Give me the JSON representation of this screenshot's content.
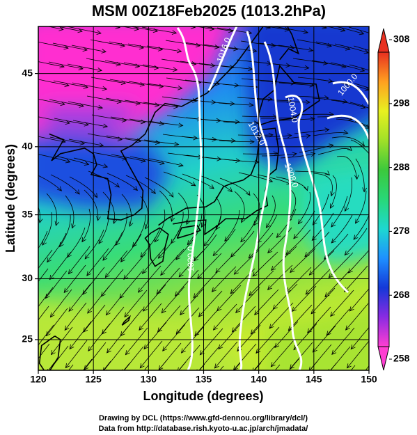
{
  "chart_data": {
    "type": "map",
    "title": "MSM 00Z18Feb2025 (1013.2hPa)",
    "xlabel": "Longitude (degrees)",
    "ylabel": "Latitude  (degrees)",
    "projection": "mercator",
    "xlim": [
      120,
      150
    ],
    "ylim": [
      22.4,
      48
    ],
    "xticks": [
      120,
      125,
      130,
      135,
      140,
      145,
      150
    ],
    "yticks": [
      25,
      30,
      35,
      40,
      45
    ],
    "grid": true,
    "colorbar": {
      "lim": [
        258,
        308
      ],
      "ticks": [
        258,
        268,
        278,
        288,
        298,
        308
      ],
      "colors": [
        "#ff3ed2",
        "#8a2be2",
        "#1438d8",
        "#1e90ff",
        "#1ed8d0",
        "#28d878",
        "#3cc83c",
        "#a0e028",
        "#e8f020",
        "#ffa020",
        "#e83020"
      ]
    },
    "contour_labels": [
      "1016.0",
      "1012.0",
      "1008.0",
      "1004.0",
      "1000.0",
      "1020.0"
    ]
  },
  "credits": [
    "Drawing by DCL (https://www.gfd-dennou.org/library/dcl/)",
    "Data from http://database.rish.kyoto-u.ac.jp/arch/jmadata/"
  ]
}
